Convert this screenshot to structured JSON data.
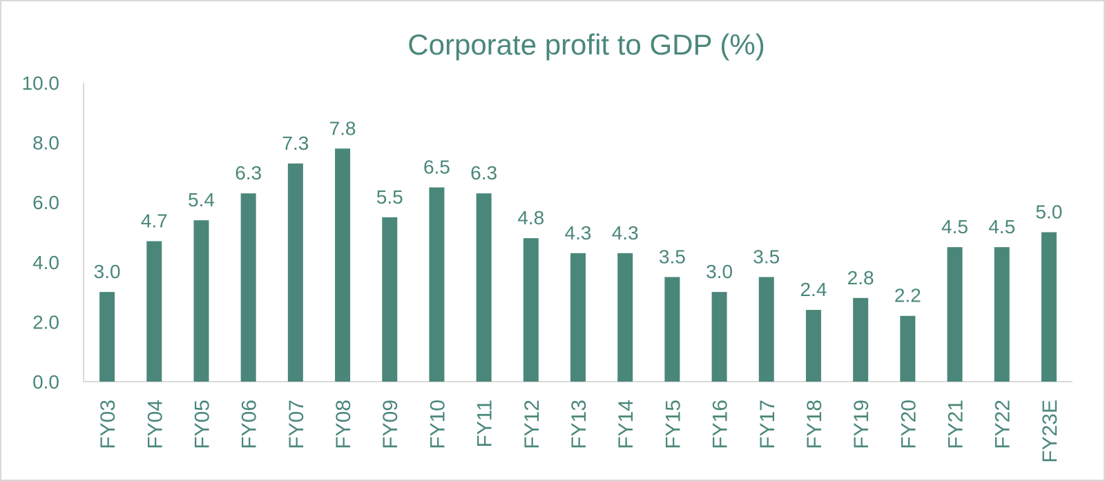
{
  "chart_data": {
    "type": "bar",
    "title": "Corporate profit to GDP (%)",
    "xlabel": "",
    "ylabel": "",
    "categories": [
      "FY03",
      "FY04",
      "FY05",
      "FY06",
      "FY07",
      "FY08",
      "FY09",
      "FY10",
      "FY11",
      "FY12",
      "FY13",
      "FY14",
      "FY15",
      "FY16",
      "FY17",
      "FY18",
      "FY19",
      "FY20",
      "FY21",
      "FY22",
      "FY23E"
    ],
    "values": [
      3.0,
      4.7,
      5.4,
      6.3,
      7.3,
      7.8,
      5.5,
      6.5,
      6.3,
      4.8,
      4.3,
      4.3,
      3.5,
      3.0,
      3.5,
      2.4,
      2.8,
      2.2,
      4.5,
      4.5,
      5.0
    ],
    "value_labels": [
      "3.0",
      "4.7",
      "5.4",
      "6.3",
      "7.3",
      "7.8",
      "5.5",
      "6.5",
      "6.3",
      "4.8",
      "4.3",
      "4.3",
      "3.5",
      "3.0",
      "3.5",
      "2.4",
      "2.8",
      "2.2",
      "4.5",
      "4.5",
      "5.0"
    ],
    "ylim": [
      0,
      10
    ],
    "yticks": [
      0,
      2,
      4,
      6,
      8,
      10
    ],
    "ytick_labels": [
      "0.0",
      "2.0",
      "4.0",
      "6.0",
      "8.0",
      "10.0"
    ],
    "grid": false,
    "legend": "none",
    "colors": {
      "bar": "#4a877a",
      "text": "#4a877a",
      "axis": "#d9d9d9"
    }
  }
}
